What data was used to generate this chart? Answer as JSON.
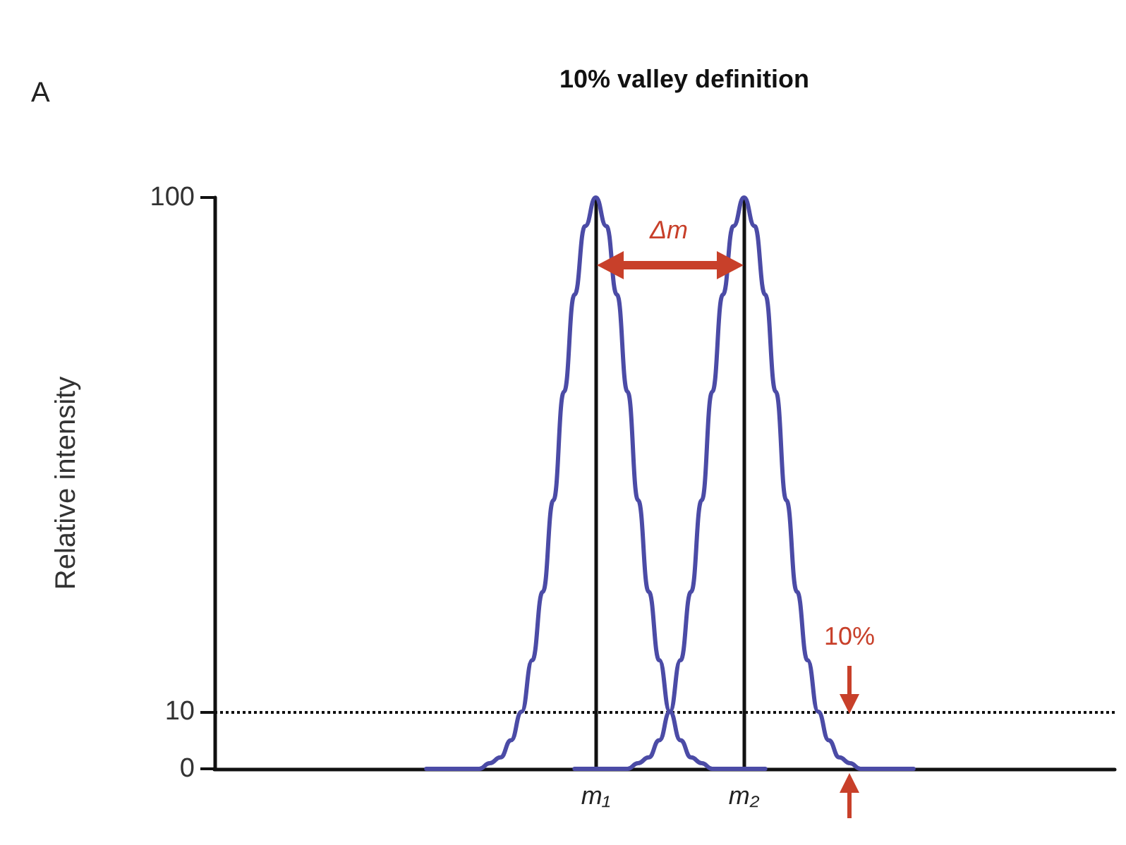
{
  "chart_data": {
    "type": "line",
    "title": "10% valley definition",
    "ylabel": "Relative intensity",
    "annotations": [
      "A",
      "Δm",
      "10%"
    ],
    "categories": [
      null,
      null,
      null,
      null,
      null,
      null,
      null,
      null,
      null,
      null,
      null,
      null,
      null,
      null,
      null,
      null,
      null,
      null,
      null,
      null,
      null,
      null,
      null,
      null,
      null,
      null,
      null,
      null,
      null,
      null,
      null,
      null,
      null,
      null,
      null,
      null,
      "m₁",
      null,
      null,
      null,
      null,
      null,
      null,
      null,
      null,
      null,
      null,
      null,
      null,
      null,
      "m₂",
      null,
      null,
      null,
      null,
      null,
      null,
      null,
      null,
      null,
      null,
      null,
      null,
      null,
      null,
      null,
      null,
      null,
      null,
      null,
      null,
      null,
      null,
      null,
      null,
      null,
      null,
      null,
      null,
      null,
      null,
      null,
      null,
      null,
      null,
      null
    ],
    "series": [
      {
        "color": "#4b4ba6",
        "values": [
          null,
          null,
          null,
          null,
          null,
          null,
          null,
          null,
          null,
          null,
          null,
          null,
          null,
          null,
          null,
          null,
          null,
          null,
          null,
          null,
          0,
          0,
          0,
          0,
          0,
          0,
          1,
          2,
          5,
          10,
          19,
          31,
          47,
          66,
          83,
          95,
          100,
          95,
          83,
          66,
          47,
          31,
          19,
          10,
          5,
          2,
          1,
          0,
          0,
          0,
          0,
          0,
          0,
          null,
          null,
          null,
          null,
          null,
          null,
          null,
          null,
          null,
          null,
          null,
          null,
          null,
          null,
          null,
          null,
          null,
          null,
          null,
          null,
          null,
          null,
          null,
          null,
          null,
          null,
          null,
          null,
          null,
          null,
          null,
          null,
          null
        ]
      },
      {
        "color": "#4b4ba6",
        "values": [
          null,
          null,
          null,
          null,
          null,
          null,
          null,
          null,
          null,
          null,
          null,
          null,
          null,
          null,
          null,
          null,
          null,
          null,
          null,
          null,
          null,
          null,
          null,
          null,
          null,
          null,
          null,
          null,
          null,
          null,
          null,
          null,
          null,
          null,
          0,
          0,
          0,
          0,
          0,
          0,
          1,
          2,
          5,
          10,
          19,
          31,
          47,
          66,
          83,
          95,
          100,
          95,
          83,
          66,
          47,
          31,
          19,
          10,
          5,
          2,
          1,
          0,
          0,
          0,
          0,
          0,
          0,
          null,
          null,
          null,
          null,
          null,
          null,
          null,
          null,
          null,
          null,
          null,
          null,
          null,
          null,
          null,
          null,
          null,
          null,
          null
        ]
      }
    ],
    "ylim": [
      0,
      100
    ],
    "yticks": [
      0,
      10,
      100
    ],
    "marker": "none",
    "line_style": "solid",
    "ref_lines": [
      {
        "axis": "x",
        "value": "m₁",
        "color": "#111111"
      },
      {
        "axis": "x",
        "value": "m₂",
        "color": "#111111"
      },
      {
        "axis": "y",
        "value": 10,
        "color": "#111111",
        "line_style": "dotted"
      }
    ]
  }
}
